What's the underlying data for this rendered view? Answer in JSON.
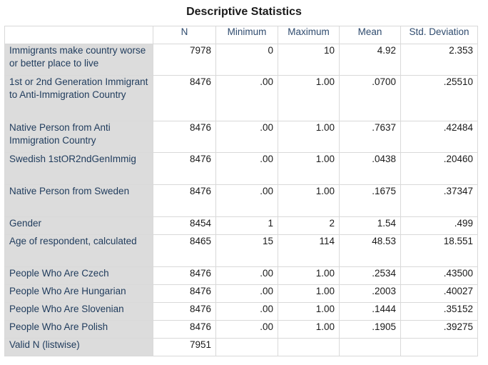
{
  "title": "Descriptive Statistics",
  "columns": [
    "N",
    "Minimum",
    "Maximum",
    "Mean",
    "Std. Deviation"
  ],
  "rows": [
    {
      "label": "Immigrants make country worse or better place to live",
      "n": "7978",
      "min": "0",
      "max": "10",
      "mean": "4.92",
      "sd": "2.353"
    },
    {
      "label": "1st or 2nd Generation Immigrant to Anti-Immigration Country",
      "n": "8476",
      "min": ".00",
      "max": "1.00",
      "mean": ".0700",
      "sd": ".25510"
    },
    {
      "label": "Native Person from Anti Immigration Country",
      "n": "8476",
      "min": ".00",
      "max": "1.00",
      "mean": ".7637",
      "sd": ".42484"
    },
    {
      "label": "Swedish 1stOR2ndGenImmig",
      "n": "8476",
      "min": ".00",
      "max": "1.00",
      "mean": ".0438",
      "sd": ".20460"
    },
    {
      "label": "Native Person from Sweden",
      "n": "8476",
      "min": ".00",
      "max": "1.00",
      "mean": ".1675",
      "sd": ".37347"
    },
    {
      "label": "Gender",
      "n": "8454",
      "min": "1",
      "max": "2",
      "mean": "1.54",
      "sd": ".499"
    },
    {
      "label": "Age of respondent, calculated",
      "n": "8465",
      "min": "15",
      "max": "114",
      "mean": "48.53",
      "sd": "18.551"
    },
    {
      "label": "People Who Are Czech",
      "n": "8476",
      "min": ".00",
      "max": "1.00",
      "mean": ".2534",
      "sd": ".43500"
    },
    {
      "label": "People Who Are Hungarian",
      "n": "8476",
      "min": ".00",
      "max": "1.00",
      "mean": ".2003",
      "sd": ".40027"
    },
    {
      "label": "People Who Are Slovenian",
      "n": "8476",
      "min": ".00",
      "max": "1.00",
      "mean": ".1444",
      "sd": ".35152"
    },
    {
      "label": "People Who Are Polish",
      "n": "8476",
      "min": ".00",
      "max": "1.00",
      "mean": ".1905",
      "sd": ".39275"
    },
    {
      "label": "Valid N (listwise)",
      "n": "7951",
      "min": "",
      "max": "",
      "mean": "",
      "sd": ""
    }
  ]
}
